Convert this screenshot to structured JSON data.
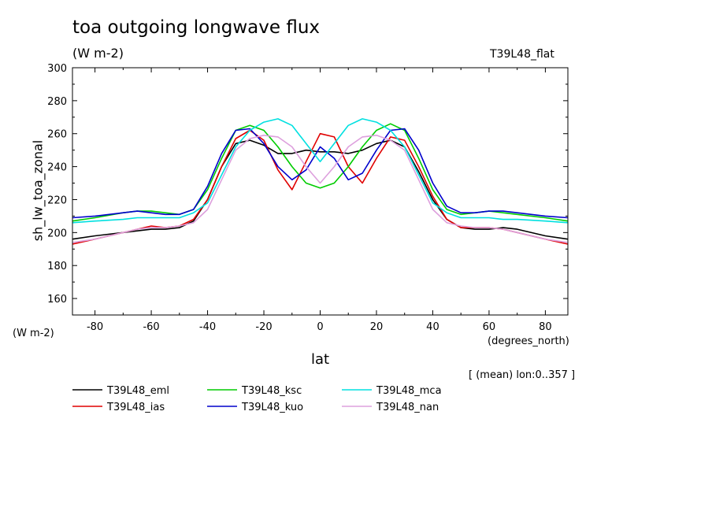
{
  "chart_data": {
    "type": "line",
    "title": "toa outgoing longwave flux",
    "subtitle": "(W m-2)",
    "tag": "T39L48_flat",
    "ylabel": "sh_lw_toa_zonal",
    "yunit": "(W m-2)",
    "xlabel": "lat",
    "xunit": "(degrees_north)",
    "note": "[ (mean) lon:0..357 ]",
    "xlim": [
      -88,
      88
    ],
    "ylim": [
      150,
      300
    ],
    "xticks": [
      "-80",
      "-60",
      "-40",
      "-20",
      "0",
      "20",
      "40",
      "60",
      "80"
    ],
    "yticks": [
      "160",
      "180",
      "200",
      "220",
      "240",
      "260",
      "280",
      "300"
    ],
    "grid": false,
    "legend_position": "bottom-left",
    "x": [
      -88,
      -80,
      -70,
      -65,
      -60,
      -55,
      -50,
      -45,
      -40,
      -35,
      -30,
      -25,
      -20,
      -15,
      -10,
      -5,
      0,
      5,
      10,
      15,
      20,
      25,
      30,
      35,
      40,
      45,
      50,
      55,
      60,
      65,
      70,
      80,
      88
    ],
    "series": [
      {
        "name": "T39L48_eml",
        "color": "#000000",
        "values": [
          196,
          198,
          200,
          201,
          202,
          202,
          203,
          207,
          220,
          240,
          254,
          256,
          253,
          248,
          248,
          250,
          249,
          249,
          248,
          250,
          254,
          256,
          252,
          237,
          220,
          208,
          203,
          202,
          202,
          203,
          202,
          198,
          196
        ]
      },
      {
        "name": "T39L48_ias",
        "color": "#e00000",
        "values": [
          193,
          196,
          200,
          202,
          204,
          203,
          204,
          208,
          220,
          240,
          257,
          262,
          256,
          238,
          226,
          243,
          260,
          258,
          240,
          230,
          245,
          258,
          256,
          240,
          222,
          208,
          203,
          203,
          203,
          202,
          200,
          196,
          193
        ]
      },
      {
        "name": "T39L48_ksc",
        "color": "#00cc00",
        "values": [
          207,
          209,
          212,
          213,
          213,
          212,
          211,
          214,
          226,
          245,
          262,
          265,
          262,
          252,
          240,
          230,
          227,
          230,
          240,
          252,
          262,
          266,
          262,
          245,
          226,
          214,
          211,
          212,
          213,
          212,
          211,
          209,
          207
        ]
      },
      {
        "name": "T39L48_kuo",
        "color": "#0000cc",
        "values": [
          209,
          210,
          212,
          213,
          212,
          211,
          211,
          214,
          228,
          248,
          262,
          263,
          254,
          240,
          232,
          238,
          252,
          245,
          232,
          236,
          250,
          262,
          263,
          250,
          230,
          216,
          212,
          212,
          213,
          213,
          212,
          210,
          209
        ]
      },
      {
        "name": "T39L48_mca",
        "color": "#00e0e0",
        "values": [
          206,
          207,
          208,
          209,
          209,
          209,
          209,
          212,
          218,
          235,
          252,
          262,
          267,
          269,
          265,
          254,
          243,
          254,
          265,
          269,
          267,
          262,
          252,
          235,
          218,
          212,
          209,
          209,
          209,
          208,
          208,
          207,
          206
        ]
      },
      {
        "name": "T39L48_nan",
        "color": "#dda0dd",
        "values": [
          194,
          196,
          200,
          202,
          203,
          203,
          204,
          206,
          214,
          232,
          250,
          257,
          259,
          258,
          252,
          240,
          230,
          240,
          252,
          258,
          259,
          256,
          250,
          232,
          214,
          206,
          204,
          203,
          203,
          202,
          200,
          196,
          194
        ]
      }
    ]
  }
}
